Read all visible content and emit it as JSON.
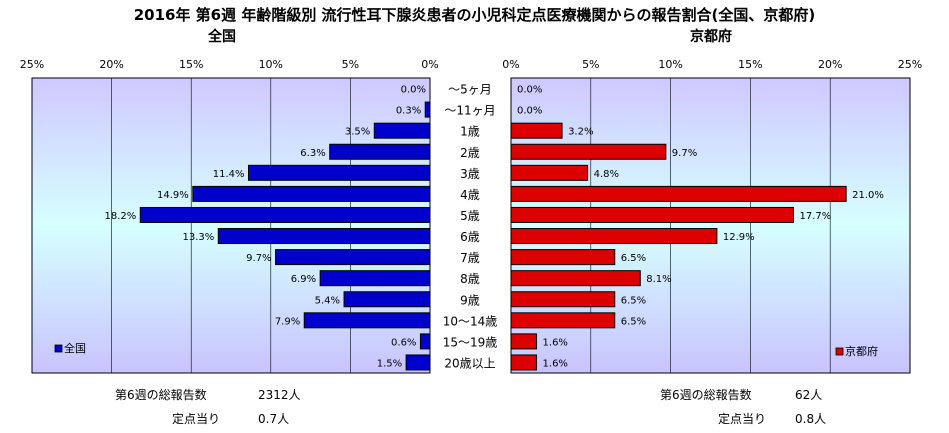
{
  "title": "2016年 第6週 年齢階級別 流行性耳下腺炎患者の小児科定点医療機関からの報告割合(全国、京都府)",
  "chart_data": [
    {
      "type": "bar",
      "title": "全国",
      "orientation": "horizontal",
      "direction": "leftward",
      "categories": [
        "〜5ヶ月",
        "〜11ヶ月",
        "1歳",
        "2歳",
        "3歳",
        "4歳",
        "5歳",
        "6歳",
        "7歳",
        "8歳",
        "9歳",
        "10〜14歳",
        "15〜19歳",
        "20歳以上"
      ],
      "series": [
        {
          "name": "全国",
          "values": [
            0.0,
            0.3,
            3.5,
            6.3,
            11.4,
            14.9,
            18.2,
            13.3,
            9.7,
            6.9,
            5.4,
            7.9,
            0.6,
            1.5
          ]
        }
      ],
      "value_labels": [
        "0.0%",
        "0.3%",
        "3.5%",
        "6.3%",
        "11.4%",
        "14.9%",
        "18.2%",
        "13.3%",
        "9.7%",
        "6.9%",
        "5.4%",
        "7.9%",
        "0.6%",
        "1.5%"
      ],
      "xlim": [
        0,
        25
      ],
      "ticks": [
        "25%",
        "20%",
        "15%",
        "10%",
        "5%",
        "0%"
      ],
      "legend_position": "bottom-left",
      "color": "#0000cc"
    },
    {
      "type": "bar",
      "title": "京都府",
      "orientation": "horizontal",
      "direction": "rightward",
      "categories": [
        "〜5ヶ月",
        "〜11ヶ月",
        "1歳",
        "2歳",
        "3歳",
        "4歳",
        "5歳",
        "6歳",
        "7歳",
        "8歳",
        "9歳",
        "10〜14歳",
        "15〜19歳",
        "20歳以上"
      ],
      "series": [
        {
          "name": "京都府",
          "values": [
            0.0,
            0.0,
            3.2,
            9.7,
            4.8,
            21.0,
            17.7,
            12.9,
            6.5,
            8.1,
            6.5,
            6.5,
            1.6,
            1.6
          ]
        }
      ],
      "value_labels": [
        "0.0%",
        "0.0%",
        "3.2%",
        "9.7%",
        "4.8%",
        "21.0%",
        "17.7%",
        "12.9%",
        "6.5%",
        "8.1%",
        "6.5%",
        "6.5%",
        "1.6%",
        "1.6%"
      ],
      "xlim": [
        0,
        25
      ],
      "ticks": [
        "0%",
        "5%",
        "10%",
        "15%",
        "20%",
        "25%"
      ],
      "legend_position": "bottom-right",
      "color": "#dd0000"
    }
  ],
  "footer": {
    "left": {
      "total_label": "第6週の総報告数",
      "total_value": "2312人",
      "per_label": "定点当り",
      "per_value": "0.7人"
    },
    "right": {
      "total_label": "第6週の総報告数",
      "total_value": "62人",
      "per_label": "定点当り",
      "per_value": "0.8人"
    }
  }
}
